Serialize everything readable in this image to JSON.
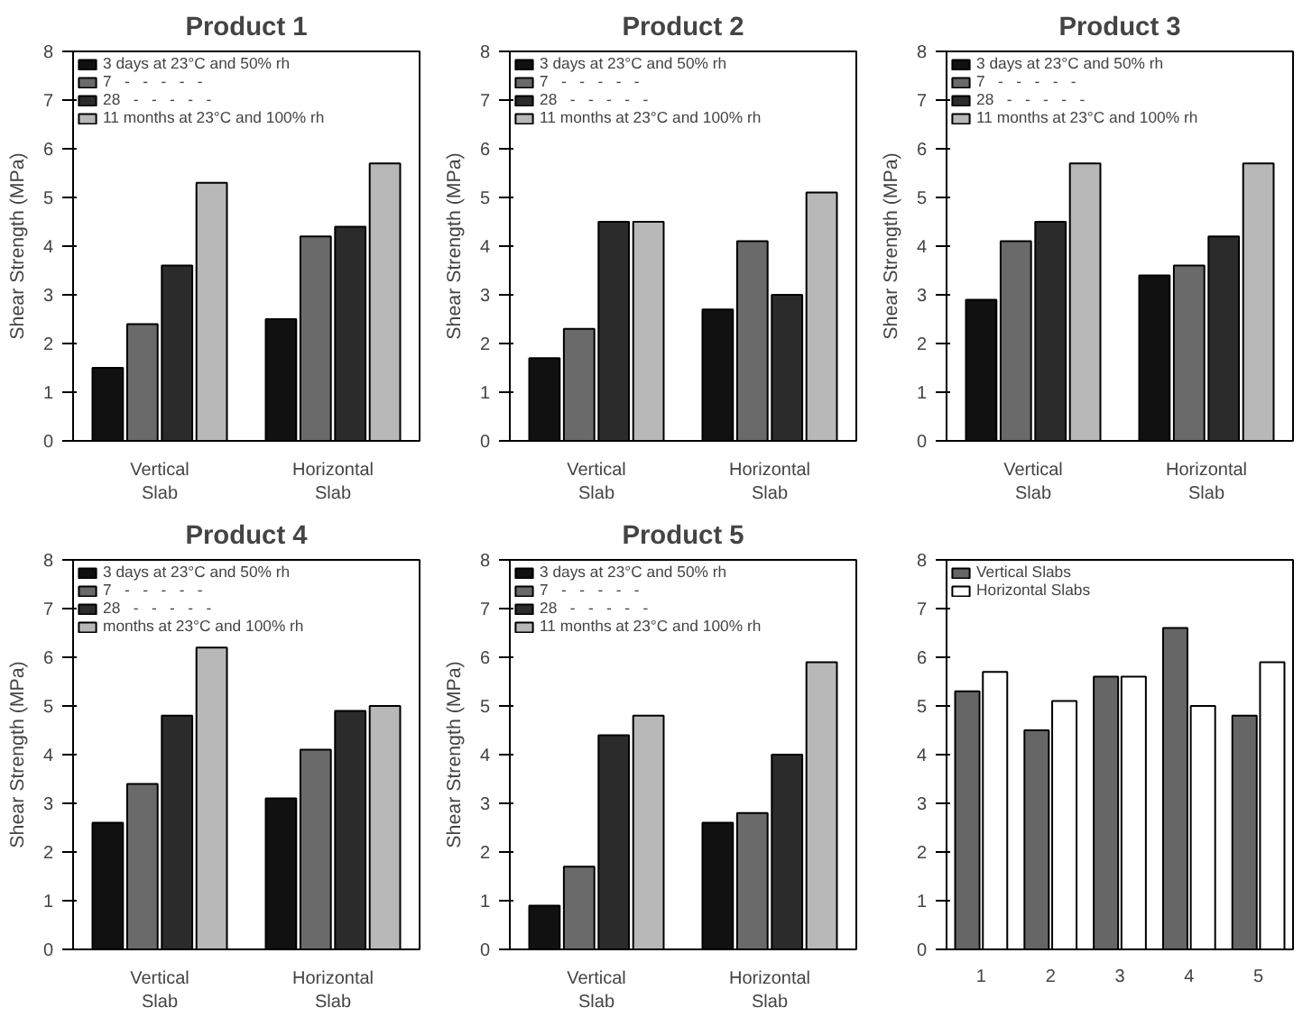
{
  "chart_data": [
    {
      "type": "bar",
      "title": "Product 1",
      "categories": [
        "Vertical\nSlab",
        "Horizontal\nSlab"
      ],
      "ylabel": "Shear Strength (MPa)",
      "ylim": [
        0,
        8
      ],
      "yticks": [
        0,
        1,
        2,
        3,
        4,
        5,
        6,
        7,
        8
      ],
      "grid": false,
      "legend": "top left",
      "series": [
        {
          "name": "3 days at 23°C and 50% rh",
          "color": "#111111",
          "values": [
            1.5,
            2.5
          ]
        },
        {
          "name": "7   -   -   -   -   -",
          "color": "#6a6a6a",
          "values": [
            2.4,
            4.2
          ]
        },
        {
          "name": "28   -   -   -   -   -",
          "color": "#2b2b2b",
          "values": [
            3.6,
            4.4
          ]
        },
        {
          "name": "11 months at 23°C and 100% rh",
          "color": "#b8b8b8",
          "values": [
            5.3,
            5.7
          ]
        }
      ]
    },
    {
      "type": "bar",
      "title": "Product 2",
      "categories": [
        "Vertical\nSlab",
        "Horizontal\nSlab"
      ],
      "ylabel": "Shear Strength (MPa)",
      "ylim": [
        0,
        8
      ],
      "yticks": [
        0,
        1,
        2,
        3,
        4,
        5,
        6,
        7,
        8
      ],
      "grid": false,
      "legend": "top left",
      "series": [
        {
          "name": "3 days at 23°C and 50% rh",
          "color": "#111111",
          "values": [
            1.7,
            2.7
          ]
        },
        {
          "name": "7   -   -   -   -   -",
          "color": "#6a6a6a",
          "values": [
            2.3,
            4.1
          ]
        },
        {
          "name": "28   -   -   -   -   -",
          "color": "#2b2b2b",
          "values": [
            4.5,
            3.0
          ]
        },
        {
          "name": "11 months at 23°C and 100% rh",
          "color": "#b8b8b8",
          "values": [
            4.5,
            5.1
          ]
        }
      ]
    },
    {
      "type": "bar",
      "title": "Product 3",
      "categories": [
        "Vertical\nSlab",
        "Horizontal\nSlab"
      ],
      "ylabel": "Shear Strength (MPa)",
      "ylim": [
        0,
        8
      ],
      "yticks": [
        0,
        1,
        2,
        3,
        4,
        5,
        6,
        7,
        8
      ],
      "grid": false,
      "legend": "top left",
      "series": [
        {
          "name": "3 days at 23°C and 50% rh",
          "color": "#111111",
          "values": [
            2.9,
            3.4
          ]
        },
        {
          "name": "7   -   -   -   -   -",
          "color": "#6a6a6a",
          "values": [
            4.1,
            3.6
          ]
        },
        {
          "name": "28   -   -   -   -   -",
          "color": "#2b2b2b",
          "values": [
            4.5,
            4.2
          ]
        },
        {
          "name": "11 months at 23°C and 100% rh",
          "color": "#b8b8b8",
          "values": [
            5.7,
            5.7
          ]
        }
      ]
    },
    {
      "type": "bar",
      "title": "Product 4",
      "categories": [
        "Vertical\nSlab",
        "Horizontal\nSlab"
      ],
      "ylabel": "Shear Strength (MPa)",
      "ylim": [
        0,
        8
      ],
      "yticks": [
        0,
        1,
        2,
        3,
        4,
        5,
        6,
        7,
        8
      ],
      "grid": false,
      "legend": "top left",
      "series": [
        {
          "name": "3 days at 23°C and 50% rh",
          "color": "#111111",
          "values": [
            2.6,
            3.1
          ]
        },
        {
          "name": "7   -   -   -   -   -",
          "color": "#6a6a6a",
          "values": [
            3.4,
            4.1
          ]
        },
        {
          "name": "28   -   -   -   -   -",
          "color": "#2b2b2b",
          "values": [
            4.8,
            4.9
          ]
        },
        {
          "name": "months at 23°C and 100% rh",
          "color": "#b8b8b8",
          "values": [
            6.2,
            5.0
          ]
        }
      ]
    },
    {
      "type": "bar",
      "title": "Product 5",
      "categories": [
        "Vertical\nSlab",
        "Horizontal\nSlab"
      ],
      "ylabel": "Shear Strength (MPa)",
      "ylim": [
        0,
        8
      ],
      "yticks": [
        0,
        1,
        2,
        3,
        4,
        5,
        6,
        7,
        8
      ],
      "grid": false,
      "legend": "top left",
      "series": [
        {
          "name": "3 days at 23°C and 50% rh",
          "color": "#111111",
          "values": [
            0.9,
            2.6
          ]
        },
        {
          "name": "7   -   -   -   -   -",
          "color": "#6a6a6a",
          "values": [
            1.7,
            2.8
          ]
        },
        {
          "name": "28   -   -   -   -   -",
          "color": "#2b2b2b",
          "values": [
            4.4,
            4.0
          ]
        },
        {
          "name": "11 months at 23°C and 100% rh",
          "color": "#b8b8b8",
          "values": [
            4.8,
            5.9
          ]
        }
      ]
    },
    {
      "type": "bar",
      "categories": [
        "1",
        "2",
        "3",
        "4",
        "5"
      ],
      "ylim": [
        0,
        8
      ],
      "yticks": [
        0,
        1,
        2,
        3,
        4,
        5,
        6,
        7,
        8
      ],
      "grid": false,
      "legend": "top left",
      "series": [
        {
          "name": "Vertical Slabs",
          "color": "#666666",
          "values": [
            5.3,
            4.5,
            5.6,
            6.6,
            4.8
          ]
        },
        {
          "name": "Horizontal Slabs",
          "color": "#ffffff",
          "values": [
            5.7,
            5.1,
            5.6,
            5.0,
            5.9
          ]
        }
      ]
    }
  ]
}
